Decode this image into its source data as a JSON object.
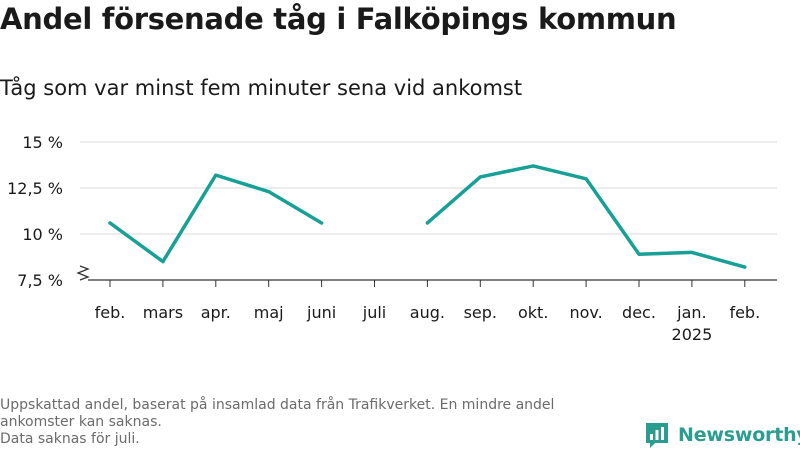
{
  "title": "Andel försenade tåg i Falköpings kommun",
  "subtitle": "Tåg som var minst fem minuter sena vid ankomst",
  "footnote": {
    "line1": "Uppskattad andel, baserat på insamlad data från Trafikverket. En mindre andel ankomster kan saknas.",
    "line2": "Data saknas för juli."
  },
  "brand": {
    "name": "Newsworthy",
    "icon": "newsworthy-logo-icon",
    "color": "#2a9d8f"
  },
  "chart_data": {
    "type": "line",
    "categories": [
      "feb.",
      "mars",
      "apr.",
      "maj",
      "juni",
      "juli",
      "aug.",
      "sep.",
      "okt.",
      "nov.",
      "dec.",
      "jan.",
      "feb."
    ],
    "year_labels": [
      "",
      "",
      "",
      "",
      "",
      "",
      "",
      "",
      "",
      "",
      "",
      "2025",
      ""
    ],
    "series": [
      {
        "values": [
          10.6,
          8.5,
          13.2,
          12.3,
          10.6,
          null,
          10.6,
          13.1,
          13.7,
          13.0,
          8.9,
          9.0,
          8.2
        ],
        "color": "#17a096"
      }
    ],
    "yticks": [
      7.5,
      10,
      12.5,
      15
    ],
    "ytick_labels": [
      "7,5 %",
      "10 %",
      "12,5 %",
      "15 %"
    ],
    "ylim": [
      7.5,
      15
    ],
    "axis_break": true,
    "grid": true,
    "gridline_color": "#d9d9d9",
    "axis_color": "#333333"
  }
}
